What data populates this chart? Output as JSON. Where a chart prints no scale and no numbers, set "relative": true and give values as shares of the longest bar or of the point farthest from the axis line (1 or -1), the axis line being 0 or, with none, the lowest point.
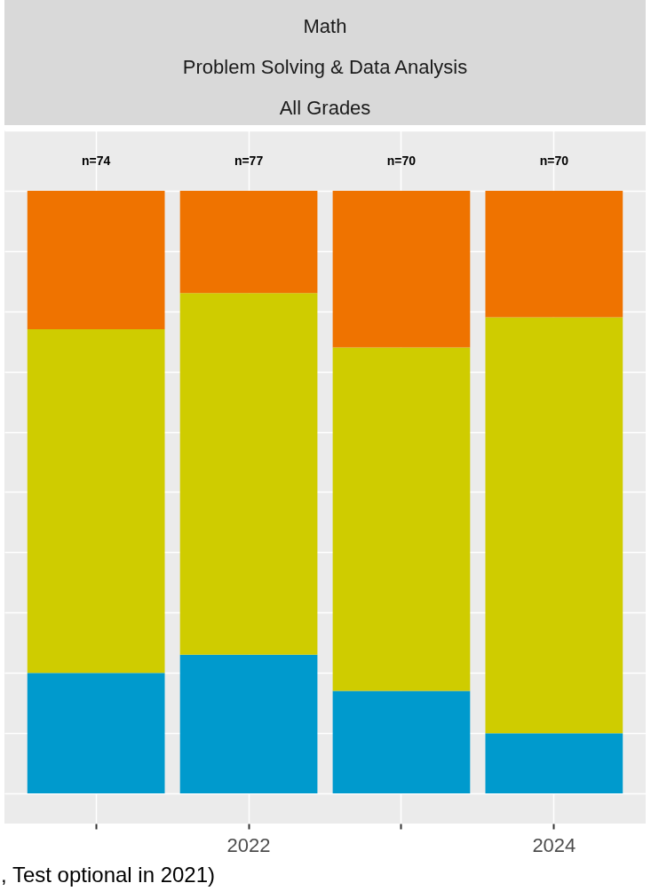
{
  "chart_data": {
    "type": "bar",
    "title": "Math",
    "subtitle": "Problem Solving & Data Analysis",
    "annotations": [
      "All Grades",
      "n=74",
      "n=77",
      "n=70",
      "n=70",
      ", Test optional in 2021)"
    ],
    "categories": [
      null,
      "2022",
      null,
      "2024"
    ],
    "stacked": true,
    "relative": true,
    "grid": true,
    "tick_labels": "x",
    "series": [
      {
        "color": "#009acd",
        "values": [
          0.2,
          0.23,
          0.17,
          0.1
        ]
      },
      {
        "color": "#cfcc00",
        "values": [
          0.57,
          0.6,
          0.57,
          0.69
        ]
      },
      {
        "color": "#ef7300",
        "values": [
          0.23,
          0.17,
          0.26,
          0.21
        ]
      }
    ]
  }
}
